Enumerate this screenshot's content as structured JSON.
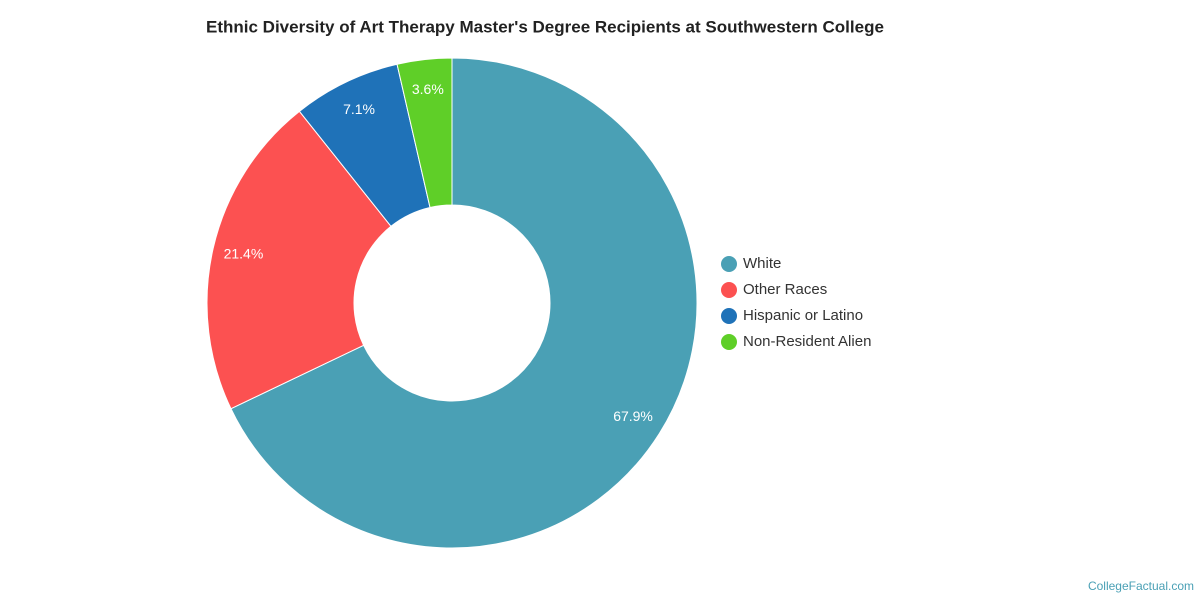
{
  "chart_data": {
    "type": "donut",
    "title": "Ethnic Diversity of Art Therapy Master's Degree Recipients at Southwestern College",
    "categories": [
      "White",
      "Other Races",
      "Hispanic or Latino",
      "Non-Resident Alien"
    ],
    "values": [
      67.9,
      21.4,
      7.1,
      3.6
    ],
    "value_labels": [
      "67.9%",
      "21.4%",
      "7.1%",
      "3.6%"
    ],
    "colors": [
      "#4aa0b5",
      "#fc5151",
      "#1f72b8",
      "#5fcf28"
    ],
    "legend": "right",
    "watermark": "CollegeFactual.com"
  }
}
